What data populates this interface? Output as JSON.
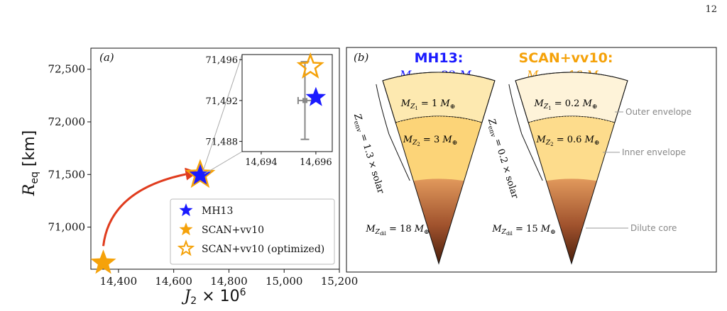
{
  "page_number": "12",
  "chart_data": [
    {
      "type": "scatter",
      "panel_label": "(a)",
      "xlabel": "J_2 × 10^6",
      "ylabel": "R_eq [km]",
      "xlim": [
        14300,
        15200
      ],
      "ylim": [
        70600,
        72700
      ],
      "xticks": [
        14400,
        14600,
        14800,
        15000,
        15200
      ],
      "xtick_labels": [
        "14,400",
        "14,600",
        "14,800",
        "15,000",
        "15,200"
      ],
      "yticks": [
        71000,
        71500,
        72000,
        72500
      ],
      "ytick_labels": [
        "71,000",
        "71,500",
        "72,000",
        "72,500"
      ],
      "series": [
        {
          "name": "MH13",
          "color": "#1a1aff",
          "marker": "filled-star",
          "x": [
            14696
          ],
          "y": [
            71492.3
          ]
        },
        {
          "name": "SCAN+vv10",
          "color": "#f5a20a",
          "marker": "filled-star",
          "x": [
            14345
          ],
          "y": [
            70660
          ]
        },
        {
          "name": "SCAN+vv10 (optimized)",
          "color": "#f5a20a",
          "marker": "open-star",
          "x": [
            14695.8
          ],
          "y": [
            71495.3
          ]
        }
      ],
      "arrow": {
        "from": [
          14345,
          70820
        ],
        "to": [
          14680,
          71520
        ],
        "color": "#e03c1e"
      },
      "legend_position": "lower-right",
      "inset": {
        "xlim": [
          14693.3,
          14696.6
        ],
        "ylim": [
          71487,
          71496.5
        ],
        "xticks": [
          14694,
          14696
        ],
        "xtick_labels": [
          "14,694",
          "14,696"
        ],
        "yticks": [
          71488,
          71492,
          71496
        ],
        "ytick_labels": [
          "71,488",
          "71,492",
          "71,496"
        ],
        "observation": {
          "x": 14695.6,
          "y": 71492,
          "xerr": 0.25,
          "yerr": 3.8,
          "color": "#888888"
        }
      }
    }
  ],
  "panel_b": {
    "panel_label": "(b)",
    "models": [
      {
        "title": "MH13:",
        "total": "22",
        "z1": "1",
        "z2": "3",
        "zenv": "1.3",
        "zdil": "18",
        "color": "#1a1aff",
        "outer_fill": "#fde9b0",
        "inner_fill": "#fcd478"
      },
      {
        "title": "SCAN+vv10:",
        "total": "16",
        "z1": "0.2",
        "z2": "0.6",
        "zenv": "0.2",
        "zdil": "15",
        "color": "#f5a20a",
        "outer_fill": "#fef3d9",
        "inner_fill": "#fddc8c"
      }
    ],
    "zone_labels": [
      "Outer envelope",
      "Inner envelope",
      "Dilute core"
    ]
  }
}
